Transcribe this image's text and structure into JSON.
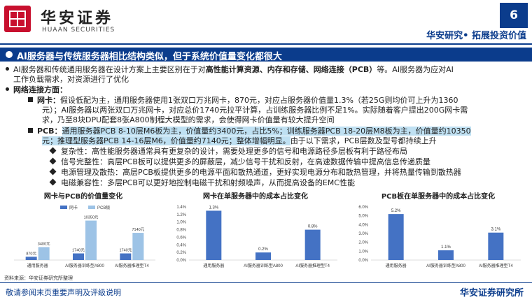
{
  "header": {
    "logo_cn": "华安证券",
    "logo_en": "HUAAN SECURITIES",
    "page_number": "6",
    "slogan": "华安研究• 拓展投资价值"
  },
  "title": "AI服务器与传统服务器相比结构类似，但于系统价值量变化都很大",
  "body": {
    "intro_1a": "AI服务器和传统通用服务器在设计方案上主要区别在于对",
    "intro_1b": "高性能计算资源、内存和存储、网络连接（PCB）",
    "intro_1c": "等。AI服务器为应对AI",
    "intro_2": "工作负载需求，对资源进行了优化",
    "network_heading": "网络连接方面：",
    "nic_label": "网卡：",
    "nic_1": "假设低配为主，通用服务器使用1张双口万兆网卡，870元，对应占服务器价值量1.3%（若25G则均价可上升为1360",
    "nic_2": "元）；AI服务器以两张双口万兆网卡，对应总价1740元拉平计算，占训练服务器比例不足1%。实际随着客户提出200G网卡需",
    "nic_3": "求，乃至8块DPU配套8张A800制程大模型的需求，会使得网卡价值量有较大提升空间",
    "pcb_label": "PCB：",
    "pcb_1": "通用服务器PCB 8-10层M6板为主，价值量约3400元，占比5%；训练服务器PCB 18-20层M8板为主，价值量约10350",
    "pcb_2a": "元；推理型服务器PCB 14-16层M6，价值量约7140元；整体增幅明显。",
    "pcb_2b": "由于以下需求，PCB层数及型号都持续上升",
    "sub_1": "复杂性：高性能服务器通常具有更复杂的设计，需要处理更多的信号和电源路径多层板有利于路径布局",
    "sub_2": "信号完整性：高层PCB板可以提供更多的屏蔽层，减少信号干扰和反射，在高速数据传输中提高信息传递质量",
    "sub_3": "电源管理及散热：高层PCB板提供更多的电源平面和散热通道，更好实现电源分布和散热管理，并将热量传输到散热器",
    "sub_4": "电磁兼容性：多层PCB可以更好地控制电磁干扰和射频噪声，从而提高设备的EMC性能"
  },
  "chart_data": [
    {
      "type": "bar",
      "title": "网卡与PCB的价值量变化",
      "categories": [
        "通用服务器",
        "AI服务器训练型A800",
        "AI服务器推理型T4"
      ],
      "series": [
        {
          "name": "网卡",
          "values": [
            870,
            1740,
            1740
          ],
          "labels": [
            "870元",
            "1740元",
            "1740元"
          ],
          "color": "#4472c4"
        },
        {
          "name": "PCB板",
          "values": [
            3400,
            10350,
            7140
          ],
          "labels": [
            "3400元",
            "10350元",
            "7140元"
          ],
          "color": "#9dc3e6"
        }
      ],
      "ylim": [
        0,
        11000
      ],
      "legend": "top-left"
    },
    {
      "type": "bar",
      "title": "网卡在单服务器中的成本占比变化",
      "categories": [
        "通用服务器",
        "AI服务器训练型A800",
        "AI服务器推理型T4"
      ],
      "values": [
        1.3,
        0.2,
        0.8
      ],
      "labels": [
        "1.3%",
        "0.2%",
        "0.8%"
      ],
      "yticks": [
        "0.0%",
        "0.2%",
        "0.4%",
        "0.6%",
        "0.8%",
        "1.0%",
        "1.2%",
        "1.4%"
      ],
      "ylim": [
        0,
        1.4
      ],
      "color": "#4472c4"
    },
    {
      "type": "bar",
      "title": "PCB板在单服务器中的成本占比变化",
      "categories": [
        "通用服务器",
        "AI服务器训练型A800",
        "AI服务器推理型T4"
      ],
      "values": [
        5.2,
        1.1,
        3.1
      ],
      "labels": [
        "5.2%",
        "1.1%",
        "3.1%"
      ],
      "yticks": [
        "0.0%",
        "1.0%",
        "2.0%",
        "3.0%",
        "4.0%",
        "5.0%",
        "6.0%"
      ],
      "ylim": [
        0,
        6
      ],
      "color": "#4472c4"
    }
  ],
  "source": "资料来源：华安证券研究所整理",
  "footer": {
    "disclaimer": "敬请参阅末页重要声明及评级说明",
    "org": "华安证券研究所"
  }
}
